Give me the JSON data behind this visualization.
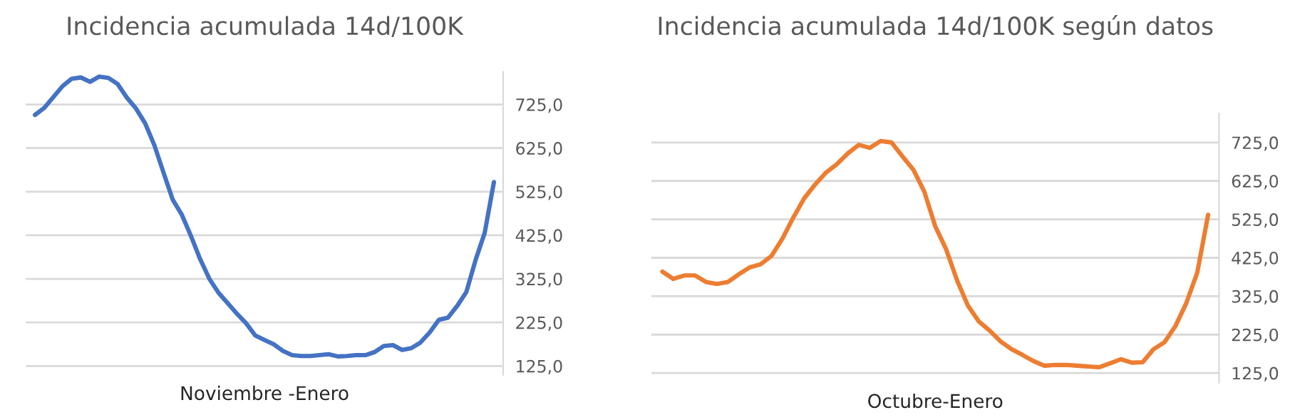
{
  "chart_data": [
    {
      "type": "line",
      "title": "Incidencia acumulada 14d/100K",
      "xlabel": "Noviembre -Enero",
      "tick_labels": "y",
      "grid": "y",
      "marker": "none",
      "line_style": "solid",
      "ylim": [
        105,
        800
      ],
      "yticks": [
        {
          "value": 125,
          "label": "125,0"
        },
        {
          "value": 225,
          "label": "225,0"
        },
        {
          "value": 325,
          "label": "325,0"
        },
        {
          "value": 425,
          "label": "425,0"
        },
        {
          "value": 525,
          "label": "525,0"
        },
        {
          "value": 625,
          "label": "625,0"
        },
        {
          "value": 725,
          "label": "725,0"
        }
      ],
      "categories": [
        null,
        null,
        null,
        null,
        null,
        null,
        null,
        null,
        null,
        null,
        null,
        null,
        null,
        null,
        null,
        null,
        null,
        null,
        null,
        null,
        null,
        null,
        null,
        null,
        null,
        null,
        null,
        null,
        null,
        null,
        null,
        null,
        null,
        null,
        null,
        null,
        null,
        null,
        null,
        null,
        null,
        null,
        null,
        null,
        null,
        null,
        null,
        null,
        null,
        null,
        null
      ],
      "series": [
        {
          "color": "#4472c4",
          "values": [
            701,
            717,
            742,
            767,
            784,
            787,
            777,
            789,
            786,
            772,
            741,
            716,
            682,
            632,
            569,
            507,
            472,
            423,
            370,
            325,
            293,
            269,
            245,
            223,
            195,
            185,
            175,
            160,
            150,
            148,
            148,
            150,
            152,
            147,
            148,
            150,
            150,
            157,
            171,
            173,
            162,
            166,
            179,
            202,
            231,
            236,
            263,
            295,
            368,
            431,
            547
          ]
        }
      ]
    },
    {
      "type": "line",
      "title": "Incidencia acumulada 14d/100K según datos",
      "xlabel": "Octubre-Enero",
      "tick_labels": "y",
      "grid": "y",
      "marker": "none",
      "line_style": "solid",
      "ylim": [
        100,
        800
      ],
      "yticks": [
        {
          "value": 125,
          "label": "125,0"
        },
        {
          "value": 225,
          "label": "225,0"
        },
        {
          "value": 325,
          "label": "325,0"
        },
        {
          "value": 425,
          "label": "425,0"
        },
        {
          "value": 525,
          "label": "525,0"
        },
        {
          "value": 625,
          "label": "625,0"
        },
        {
          "value": 725,
          "label": "725,0"
        }
      ],
      "categories": [
        null,
        null,
        null,
        null,
        null,
        null,
        null,
        null,
        null,
        null,
        null,
        null,
        null,
        null,
        null,
        null,
        null,
        null,
        null,
        null,
        null,
        null,
        null,
        null,
        null,
        null,
        null,
        null,
        null,
        null,
        null,
        null,
        null,
        null,
        null,
        null,
        null,
        null,
        null,
        null,
        null,
        null,
        null,
        null,
        null,
        null,
        null,
        null,
        null,
        null,
        null
      ],
      "series": [
        {
          "color": "#ed7d31",
          "values": [
            389,
            370,
            379,
            379,
            362,
            357,
            362,
            382,
            400,
            408,
            430,
            475,
            530,
            580,
            616,
            647,
            669,
            697,
            719,
            711,
            729,
            725,
            689,
            654,
            597,
            507,
            447,
            366,
            300,
            259,
            235,
            207,
            187,
            172,
            156,
            144,
            146,
            146,
            144,
            142,
            140,
            150,
            161,
            152,
            153,
            187,
            205,
            247,
            307,
            386,
            537
          ]
        }
      ]
    }
  ]
}
